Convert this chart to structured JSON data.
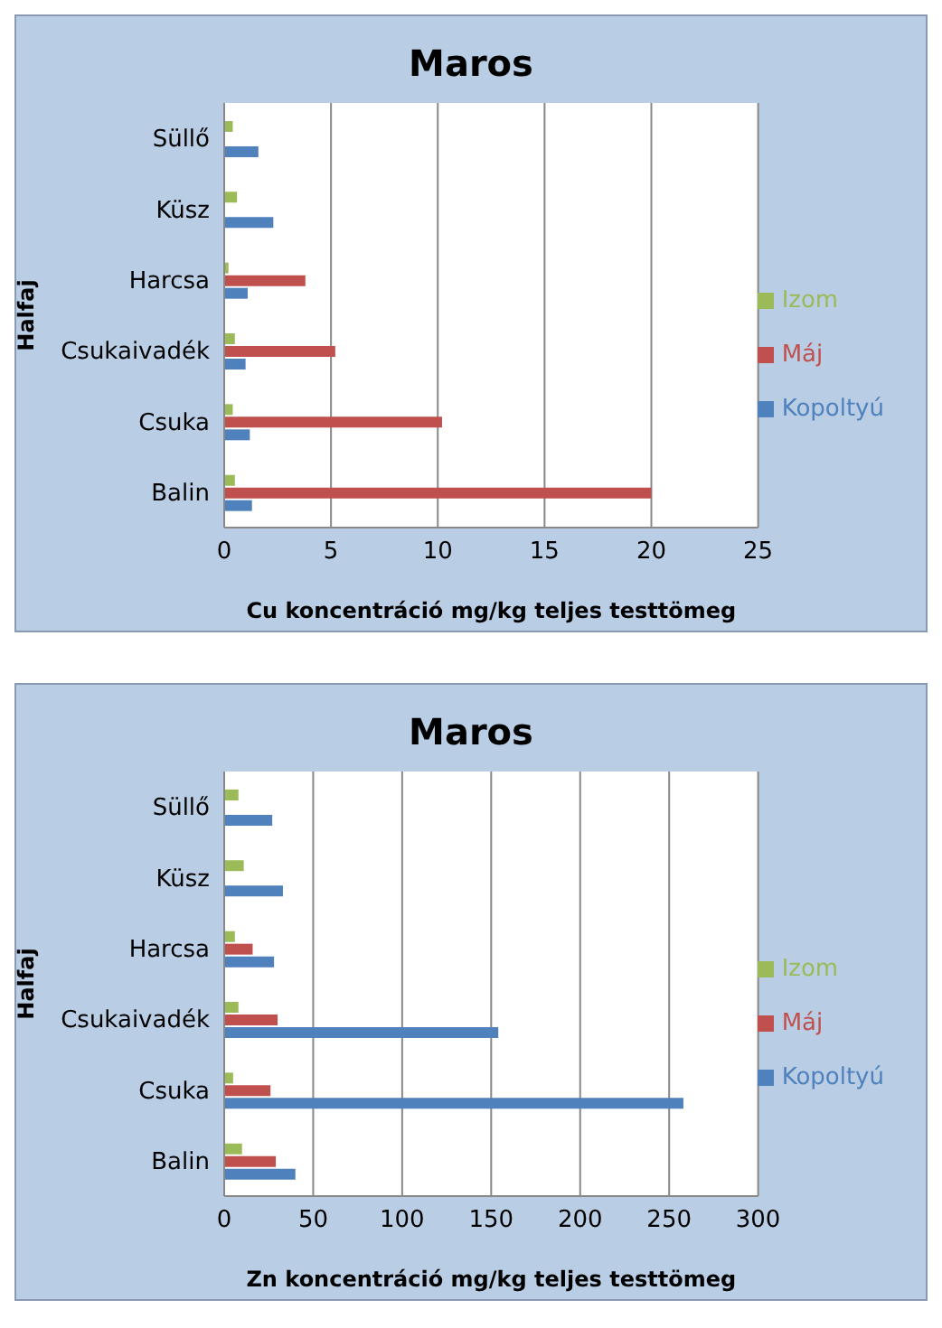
{
  "chart_data": [
    {
      "type": "bar",
      "orientation": "horizontal",
      "title": "Maros",
      "xlabel": "Cu koncentráció mg/kg teljes testtömeg",
      "ylabel": "Halfaj",
      "categories": [
        "Süllő",
        "Küsz",
        "Harcsa",
        "Csukaivadék",
        "Csuka",
        "Balin"
      ],
      "series": [
        {
          "name": "Izom",
          "color": "#9bbb59",
          "values": [
            0.4,
            0.6,
            0.2,
            0.5,
            0.4,
            0.5
          ]
        },
        {
          "name": "Máj",
          "color": "#c0504d",
          "values": [
            null,
            null,
            3.8,
            5.2,
            10.2,
            20.0
          ]
        },
        {
          "name": "Kopoltyú",
          "color": "#4f81bd",
          "values": [
            1.6,
            2.3,
            1.1,
            1.0,
            1.2,
            1.3
          ]
        }
      ],
      "xlim": [
        0,
        25
      ],
      "xticks": [
        0,
        5,
        10,
        15,
        20,
        25
      ],
      "grid": "x",
      "legend": "right"
    },
    {
      "type": "bar",
      "orientation": "horizontal",
      "title": "Maros",
      "xlabel": "Zn koncentráció mg/kg teljes testtömeg",
      "ylabel": "Halfaj",
      "categories": [
        "Süllő",
        "Küsz",
        "Harcsa",
        "Csukaivadék",
        "Csuka",
        "Balin"
      ],
      "series": [
        {
          "name": "Izom",
          "color": "#9bbb59",
          "values": [
            8,
            11,
            6,
            8,
            5,
            10
          ]
        },
        {
          "name": "Máj",
          "color": "#c0504d",
          "values": [
            null,
            null,
            16,
            30,
            26,
            29
          ]
        },
        {
          "name": "Kopoltyú",
          "color": "#4f81bd",
          "values": [
            27,
            33,
            28,
            154,
            258,
            40
          ]
        }
      ],
      "xlim": [
        0,
        300
      ],
      "xticks": [
        0,
        50,
        100,
        150,
        200,
        250,
        300
      ],
      "grid": "x",
      "legend": "right"
    }
  ]
}
